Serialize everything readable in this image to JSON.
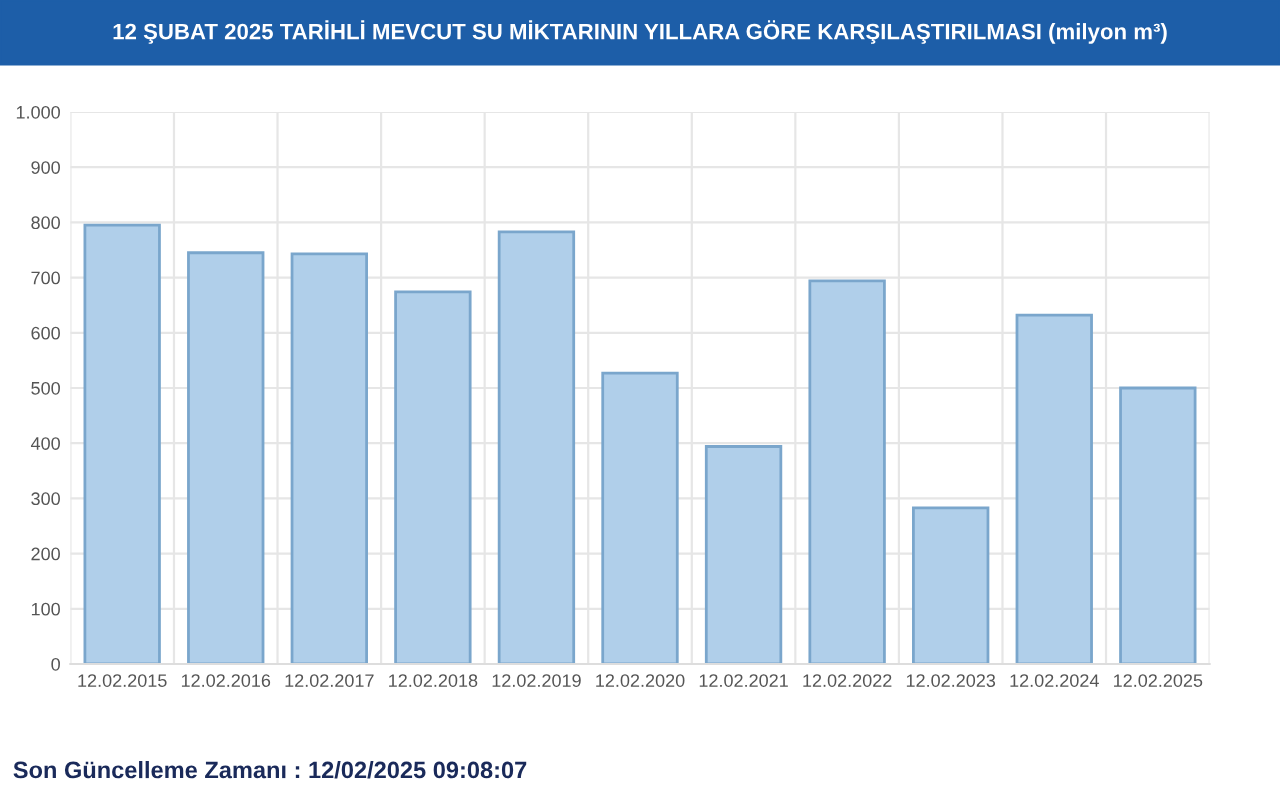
{
  "chart_data": {
    "type": "bar",
    "title": "12 ŞUBAT 2025 TARİHLİ MEVCUT SU MİKTARININ YILLARA GÖRE KARŞILAŞTIRILMASI (milyon m³)",
    "categories": [
      "12.02.2015",
      "12.02.2016",
      "12.02.2017",
      "12.02.2018",
      "12.02.2019",
      "12.02.2020",
      "12.02.2021",
      "12.02.2022",
      "12.02.2023",
      "12.02.2024",
      "12.02.2025"
    ],
    "values": [
      795,
      745,
      743,
      674,
      783,
      527,
      394,
      694,
      283,
      632,
      500
    ],
    "color": "#b0cfea",
    "ylim": [
      0,
      1000
    ],
    "yticks": [
      0,
      100,
      200,
      300,
      400,
      500,
      600,
      700,
      800,
      900,
      {
        "value": 1000,
        "label": "1.000"
      }
    ],
    "grid": true,
    "annotations": [
      "Son Güncelleme Zamanı : 12/02/2025 09:08:07"
    ]
  }
}
